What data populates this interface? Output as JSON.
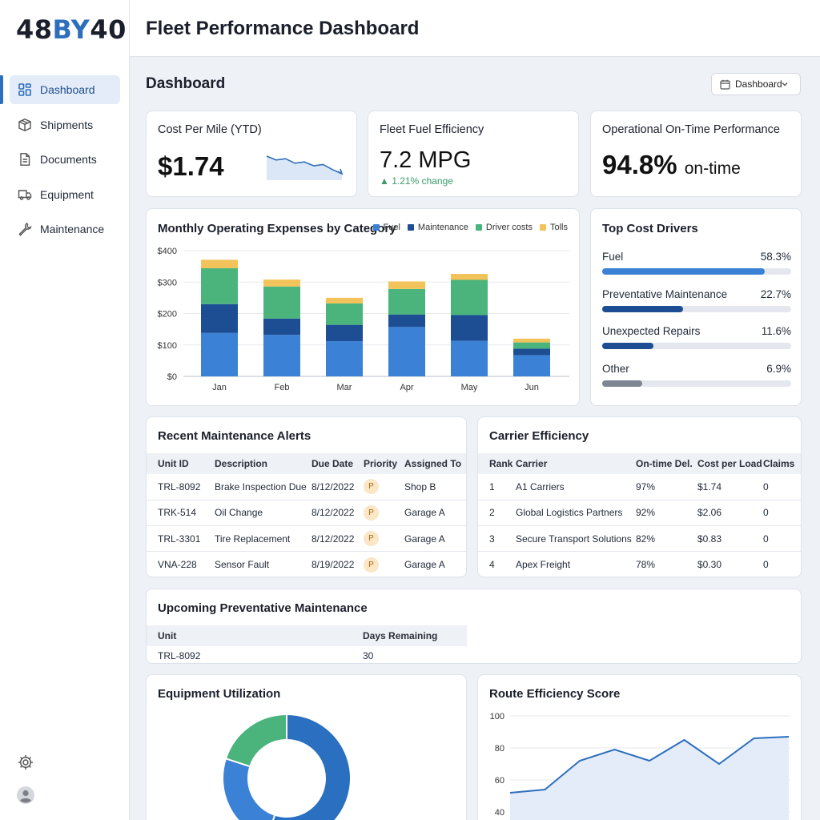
{
  "brand": {
    "logo_main": "48",
    "logo_accent": "BY",
    "logo_tail": "40"
  },
  "nav": [
    {
      "label": "Dashboard",
      "icon": "dashboard-icon",
      "active": true
    },
    {
      "label": "Shipments",
      "icon": "box-icon"
    },
    {
      "label": "Documents",
      "icon": "document-icon"
    },
    {
      "label": "Equipment",
      "icon": "truck-icon"
    },
    {
      "label": "Maintenance",
      "icon": "wrench-icon"
    }
  ],
  "header": {
    "title": "Fleet Performance Dashboard"
  },
  "page": {
    "title": "Dashboard",
    "view_select": "Dashboard"
  },
  "kpis": {
    "cost_per_mile": {
      "title": "Cost Per Mile (YTD)",
      "value": "$1.74",
      "trend": [
        70,
        58,
        62,
        48,
        52,
        40,
        44,
        28,
        15
      ]
    },
    "fuel": {
      "title": "Fleet Fuel Efficiency",
      "value": "7.2 MPG",
      "change": "▲ 1.21% change"
    },
    "ontime": {
      "title": "Operational On-Time Performance",
      "value": "94.8%",
      "suffix": "on-time"
    }
  },
  "expenses": {
    "title": "Monthly Operating Expenses by Category",
    "legend": [
      "Fuel",
      "Maintenance",
      "Driver costs",
      "Tolls"
    ]
  },
  "chart_data": [
    {
      "type": "bar",
      "title": "Monthly Operating Expenses by Category",
      "stacked": true,
      "categories": [
        "Jan",
        "Feb",
        "Mar",
        "Apr",
        "May",
        "Jun"
      ],
      "series": [
        {
          "name": "Fuel",
          "color": "#3b82d6",
          "values": [
            138,
            132,
            112,
            157,
            113,
            67
          ]
        },
        {
          "name": "Maintenance",
          "color": "#1d4e94",
          "values": [
            92,
            52,
            52,
            40,
            82,
            21
          ]
        },
        {
          "name": "Driver costs",
          "color": "#4bb47d",
          "values": [
            114,
            102,
            68,
            81,
            112,
            20
          ]
        },
        {
          "name": "Tolls",
          "color": "#f2c35b",
          "values": [
            27,
            22,
            18,
            24,
            19,
            12
          ]
        }
      ],
      "ylim": [
        0,
        400
      ],
      "yticks": [
        "$0",
        "$100",
        "$200",
        "$300",
        "$400"
      ],
      "grid": true,
      "legend_position": "top-right"
    },
    {
      "type": "pie",
      "title": "Equipment Utilization",
      "donut": true,
      "values": [
        55,
        25,
        20
      ],
      "colors": [
        "#2a6fc0",
        "#3b82d6",
        "#4bb47d"
      ]
    },
    {
      "type": "line",
      "title": "Route Efficiency Score",
      "x": [
        1,
        2,
        3,
        4,
        5,
        6,
        7,
        8,
        9
      ],
      "values": [
        52,
        54,
        72,
        79,
        72,
        85,
        70,
        86,
        87
      ],
      "yticks": [
        "40",
        "60",
        "80",
        "100"
      ],
      "ylim": [
        40,
        100
      ],
      "grid": true
    }
  ],
  "drivers": {
    "title": "Top Cost Drivers",
    "items": [
      {
        "label": "Fuel",
        "value": "58.3%",
        "pct": 0.86,
        "color": "#3b82d6"
      },
      {
        "label": "Preventative Maintenance",
        "value": "22.7%",
        "pct": 0.43,
        "color": "#1d4e94"
      },
      {
        "label": "Unexpected Repairs",
        "value": "11.6%",
        "pct": 0.27,
        "color": "#1d4e94"
      },
      {
        "label": "Other",
        "value": "6.9%",
        "pct": 0.21,
        "color": "#7d8794"
      }
    ]
  },
  "alerts": {
    "title": "Recent Maintenance Alerts",
    "columns": [
      "Unit ID",
      "Description",
      "Due Date",
      "Priority",
      "Assigned To"
    ],
    "rows": [
      [
        "TRL-8092",
        "Brake Inspection Due",
        "8/12/2022",
        "P",
        "Shop B"
      ],
      [
        "TRK-514",
        "Oil Change",
        "8/12/2022",
        "P",
        "Garage A"
      ],
      [
        "TRL-3301",
        "Tire Replacement",
        "8/12/2022",
        "P",
        "Garage A"
      ],
      [
        "VNA-228",
        "Sensor Fault",
        "8/19/2022",
        "P",
        "Garage A"
      ]
    ]
  },
  "carriers": {
    "title": "Carrier Efficiency",
    "columns": [
      "Rank",
      "Carrier",
      "On-time Del.",
      "Cost per Load",
      "Claims"
    ],
    "rows": [
      [
        "1",
        "A1 Carriers",
        "97%",
        "$1.74",
        "0"
      ],
      [
        "2",
        "Global Logistics Partners",
        "92%",
        "$2.06",
        "0"
      ],
      [
        "3",
        "Secure Transport Solutions",
        "82%",
        "$0.83",
        "0"
      ],
      [
        "4",
        "Apex Freight",
        "78%",
        "$0.30",
        "0"
      ]
    ]
  },
  "upcoming": {
    "title": "Upcoming Preventative Maintenance",
    "columns": [
      "Unit",
      "Days Remaining"
    ],
    "rows": [
      [
        "TRL-8092",
        "30"
      ]
    ]
  },
  "utilization": {
    "title": "Equipment Utilization"
  },
  "route": {
    "title": "Route Efficiency Score"
  }
}
